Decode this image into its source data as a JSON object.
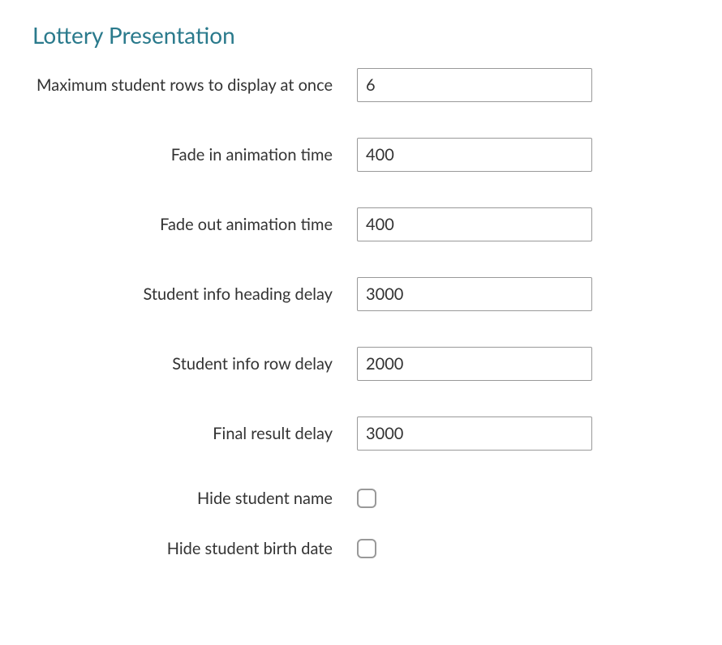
{
  "section": {
    "title": "Lottery Presentation"
  },
  "fields": {
    "max_rows": {
      "label": "Maximum student rows to display at once",
      "value": "6"
    },
    "fade_in": {
      "label": "Fade in animation time",
      "value": "400"
    },
    "fade_out": {
      "label": "Fade out animation time",
      "value": "400"
    },
    "heading_delay": {
      "label": "Student info heading delay",
      "value": "3000"
    },
    "row_delay": {
      "label": "Student info row delay",
      "value": "2000"
    },
    "final_delay": {
      "label": "Final result delay",
      "value": "3000"
    },
    "hide_name": {
      "label": "Hide student name",
      "checked": false
    },
    "hide_birth": {
      "label": "Hide student birth date",
      "checked": false
    }
  }
}
